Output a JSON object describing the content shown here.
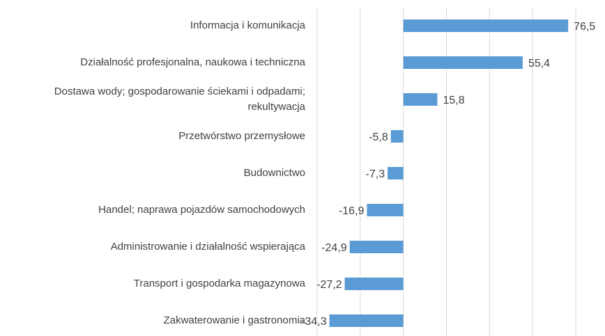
{
  "chart_data": {
    "type": "bar",
    "orientation": "horizontal",
    "categories": [
      "Informacja i komunikacja",
      "Działalność profesjonalna, naukowa i techniczna",
      "Dostawa wody; gospodarowanie ściekami i odpadami; rekultywacja",
      "Przetwórstwo przemysłowe",
      "Budownictwo",
      "Handel; naprawa pojazdów samochodowych",
      "Administrowanie i działalność wspierająca",
      "Transport i gospodarka magazynowa",
      "Zakwaterowanie i gastronomia"
    ],
    "values": [
      76.5,
      55.4,
      15.8,
      -5.8,
      -7.3,
      -16.9,
      -24.9,
      -27.2,
      -34.3
    ],
    "value_labels": [
      "76,5",
      "55,4",
      "15,8",
      "-5,8",
      "-7,3",
      "-16,9",
      "-24,9",
      "-27,2",
      "-34,3"
    ],
    "color": "#5b9bd5",
    "xlim": [
      -40,
      80
    ],
    "xticks": [
      -40,
      -20,
      0,
      20,
      40,
      60,
      80
    ],
    "grid": true
  }
}
